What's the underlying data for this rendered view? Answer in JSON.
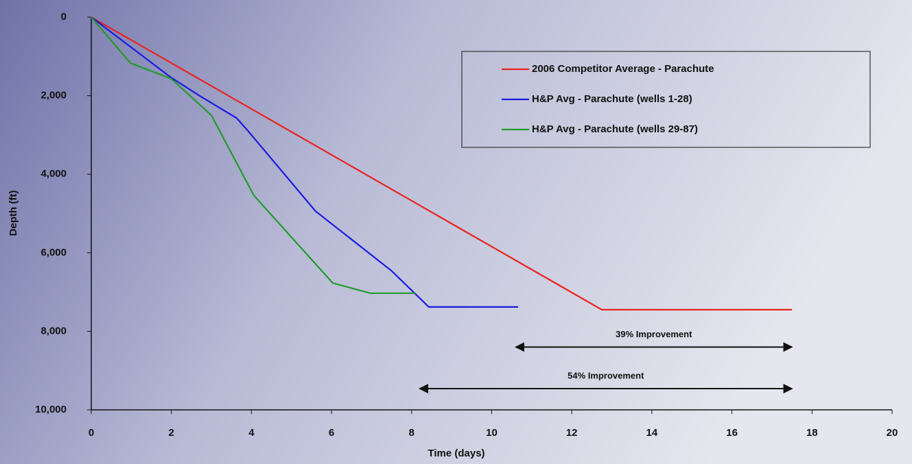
{
  "chart_data": {
    "type": "line",
    "xlabel": "Time (days)",
    "ylabel": "Depth (ft)",
    "xlim": [
      0,
      20
    ],
    "xticks": [
      0,
      2,
      4,
      6,
      8,
      10,
      12,
      14,
      16,
      18,
      20
    ],
    "ylim": [
      0,
      10000
    ],
    "y_inverted": true,
    "yticks": [
      0,
      {
        "value": 2000,
        "label": "2,000"
      },
      {
        "value": 4000,
        "label": "4,000"
      },
      {
        "value": 6000,
        "label": "6,000"
      },
      {
        "value": 8000,
        "label": "8,000"
      },
      {
        "value": 10000,
        "label": "10,000"
      }
    ],
    "legend": "upper right",
    "series": [
      {
        "name": "2006 Competitor Average -  Parachute",
        "color": "#e8231f",
        "x": [
          0,
          12.75,
          17.5
        ],
        "values": [
          0,
          7450,
          7450
        ]
      },
      {
        "name": "H&P Avg - Parachute (wells 1-28)",
        "color": "#1a1ae0",
        "x": [
          0,
          1.97,
          2.7,
          3.63,
          3.9,
          5.6,
          7.5,
          8.43,
          10.66
        ],
        "values": [
          0,
          1520,
          2000,
          2570,
          2880,
          4940,
          6460,
          7380,
          7380
        ]
      },
      {
        "name": "H&P Avg - Parachute (wells 29-87)",
        "color": "#1f9a2a",
        "x": [
          0,
          0.98,
          2.0,
          3.0,
          4.06,
          6.03,
          6.97,
          8.09
        ],
        "values": [
          0,
          1170,
          1570,
          2500,
          4540,
          6770,
          7030,
          7030
        ]
      }
    ],
    "annotations": [
      {
        "text": "39% Improvement",
        "x": [
          10.6,
          17.5
        ],
        "y": 8400
      },
      {
        "text": "54% Improvement",
        "x": [
          8.2,
          17.5
        ],
        "y": 9460
      }
    ]
  }
}
